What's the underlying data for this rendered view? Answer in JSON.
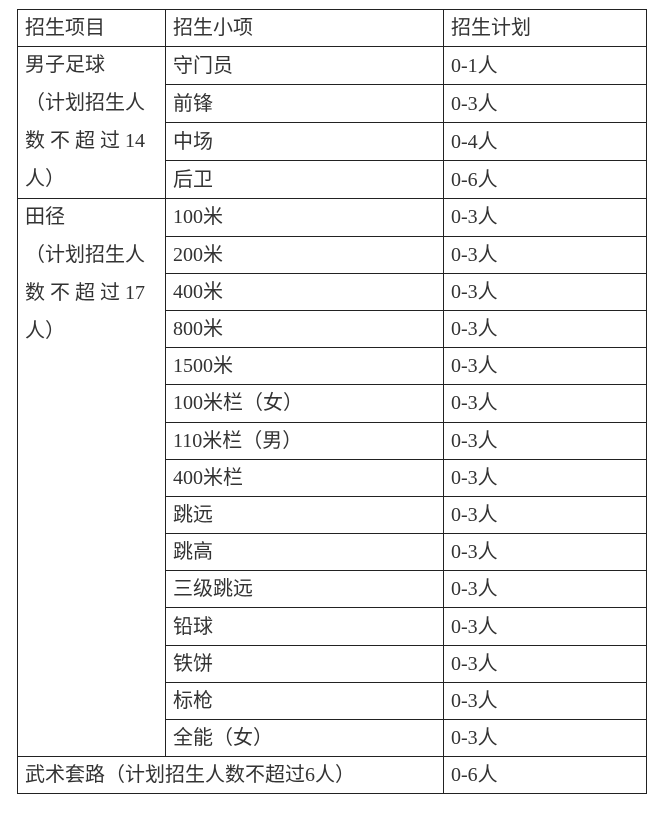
{
  "header": [
    "招生项目",
    "招生小项",
    "招生计划"
  ],
  "groups": [
    {
      "lines": [
        "男子足球",
        "（计划招生人",
        "数 不 超 过 14",
        "人）"
      ],
      "items": [
        {
          "name": "守门员",
          "plan": "0-1人"
        },
        {
          "name": "前锋",
          "plan": "0-3人"
        },
        {
          "name": "中场",
          "plan": "0-4人"
        },
        {
          "name": "后卫",
          "plan": "0-6人"
        }
      ]
    },
    {
      "lines": [
        "田径",
        "（计划招生人",
        "数 不 超 过 17",
        "人）"
      ],
      "items": [
        {
          "name": "100米",
          "plan": "0-3人"
        },
        {
          "name": "200米",
          "plan": "0-3人"
        },
        {
          "name": "400米",
          "plan": "0-3人"
        },
        {
          "name": "800米",
          "plan": "0-3人"
        },
        {
          "name": "1500米",
          "plan": "0-3人"
        },
        {
          "name": "100米栏（女）",
          "plan": "0-3人"
        },
        {
          "name": "110米栏（男）",
          "plan": "0-3人"
        },
        {
          "name": "400米栏",
          "plan": "0-3人"
        },
        {
          "name": "跳远",
          "plan": "0-3人"
        },
        {
          "name": "跳高",
          "plan": "0-3人"
        },
        {
          "name": "三级跳远",
          "plan": "0-3人"
        },
        {
          "name": "铅球",
          "plan": "0-3人"
        },
        {
          "name": "铁饼",
          "plan": "0-3人"
        },
        {
          "name": "标枪",
          "plan": "0-3人"
        },
        {
          "name": "全能（女）",
          "plan": "0-3人"
        }
      ]
    }
  ],
  "footer": {
    "label": "武术套路（计划招生人数不超过6人）",
    "plan": "0-6人"
  }
}
